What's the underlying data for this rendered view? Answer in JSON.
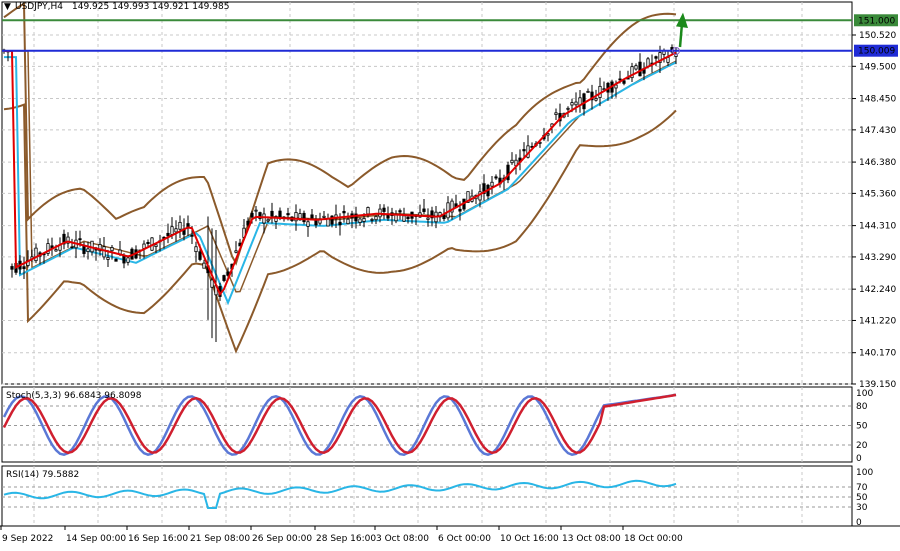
{
  "header": {
    "symbol_label": "USDJPY,H4",
    "ohlc": "149.925 149.993 149.921 149.985",
    "menu_icon": "triangle-down-icon"
  },
  "colors": {
    "background": "#ffffff",
    "grid": "#c8c8c8",
    "candle": "#000000",
    "bollinger": "#8b5a2b",
    "ma_fast": "#e00000",
    "ma_slow": "#29b6e6",
    "level_151": "#3a8a3a",
    "level_150": "#1f2bd6",
    "stoch_main": "#5b78d6",
    "stoch_signal": "#d01f2f",
    "rsi": "#29b6e6",
    "arrow": "#1b8a1b"
  },
  "price_axis": {
    "labels": [
      "150.520",
      "149.500",
      "148.450",
      "147.430",
      "146.380",
      "145.360",
      "144.310",
      "143.290",
      "142.240",
      "141.220",
      "140.170",
      "139.150"
    ],
    "values": [
      150.52,
      149.5,
      148.45,
      147.43,
      146.38,
      145.36,
      144.31,
      143.29,
      142.24,
      141.22,
      140.17,
      139.15
    ],
    "range": [
      139.15,
      151.4
    ]
  },
  "levels": [
    {
      "name": "level-151",
      "value": 151.0,
      "label": "151.000",
      "color": "#3a8a3a"
    },
    {
      "name": "level-150",
      "value": 150.009,
      "label": "150.009",
      "color": "#1f2bd6"
    }
  ],
  "stoch_panel": {
    "label": "Stoch(5,3,3) 96.6843 96.8098",
    "axis_labels": [
      "100",
      "80",
      "50",
      "20",
      "0"
    ],
    "axis_values": [
      100,
      80,
      50,
      20,
      0
    ]
  },
  "rsi_panel": {
    "label": "RSI(14) 79.5882",
    "axis_labels": [
      "100",
      "70",
      "50",
      "30",
      "0"
    ],
    "axis_values": [
      100,
      70,
      50,
      30,
      0
    ]
  },
  "time_axis": {
    "labels": [
      "9 Sep 2022",
      "14 Sep 00:00",
      "16 Sep 16:00",
      "21 Sep 08:00",
      "26 Sep 00:00",
      "28 Sep 16:00",
      "3 Oct 08:00",
      "6 Oct 00:00",
      "10 Oct 16:00",
      "13 Oct 08:00",
      "18 Oct 00:00"
    ]
  },
  "chart_data": {
    "type": "line",
    "instrument": "USDJPY",
    "timeframe": "H4",
    "x_start": "9 Sep 2022",
    "x_end": "20 Oct 2022",
    "close_trend": {
      "x": [
        "9 Sep 2022",
        "14 Sep 00:00",
        "16 Sep 16:00",
        "21 Sep 08:00",
        "22 Sep",
        "26 Sep 00:00",
        "28 Sep 16:00",
        "3 Oct 08:00",
        "6 Oct 00:00",
        "10 Oct 16:00",
        "13 Oct 08:00",
        "18 Oct 00:00",
        "20 Oct"
      ],
      "y": [
        142.9,
        143.8,
        143.3,
        144.3,
        142.0,
        144.6,
        144.5,
        144.7,
        144.6,
        145.7,
        147.9,
        149.1,
        150.0
      ]
    },
    "levels": [
      151.0,
      150.009
    ],
    "stochastic": {
      "k": 96.6843,
      "d": 96.8098,
      "params": "5,3,3"
    },
    "rsi": {
      "value": 79.5882,
      "period": 14
    },
    "ylim": [
      139.15,
      151.4
    ]
  }
}
